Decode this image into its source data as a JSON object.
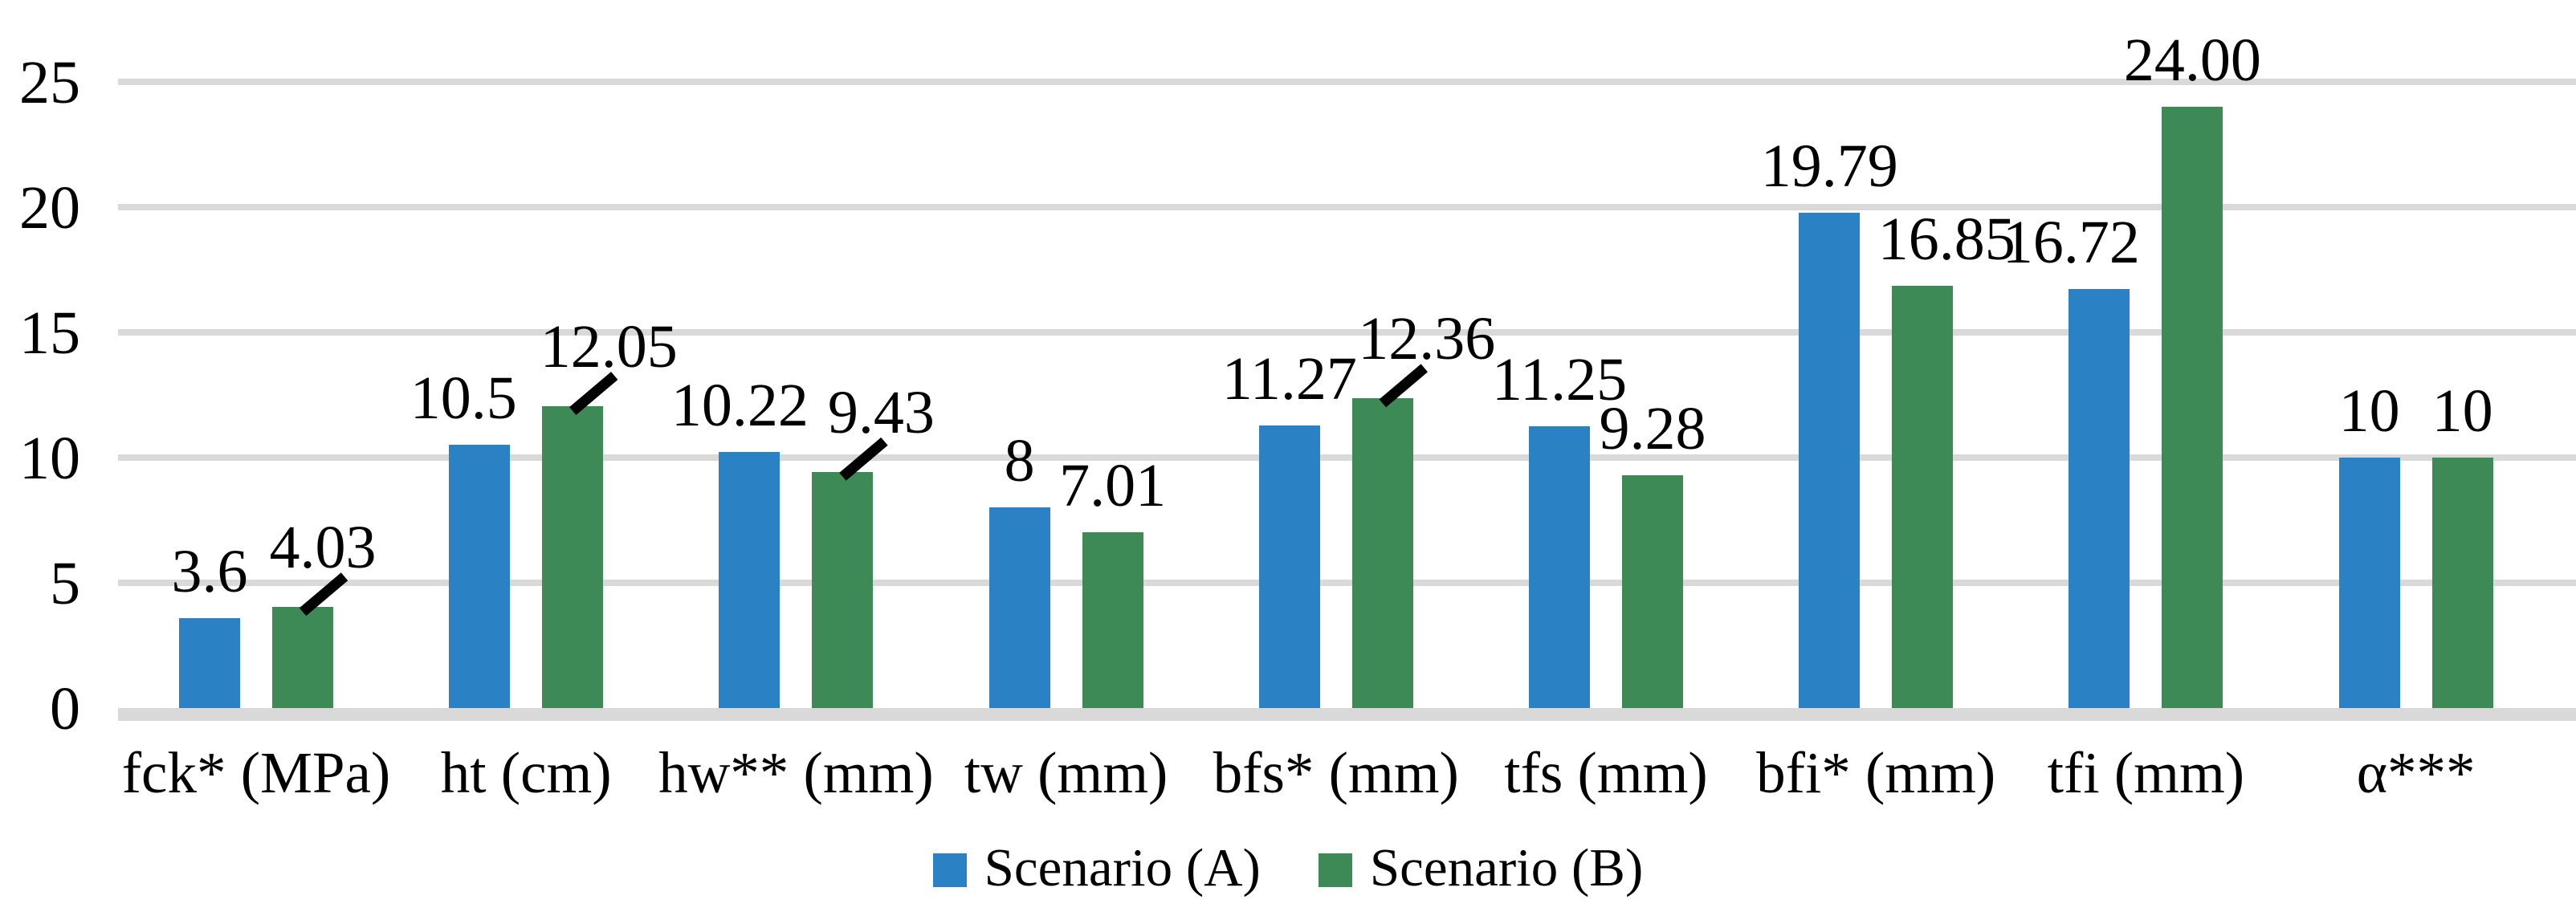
{
  "chart_data": {
    "type": "bar",
    "title": "",
    "xlabel": "",
    "ylabel": "",
    "categories": [
      "fck* (MPa)",
      "ht (cm)",
      "hw** (mm)",
      "tw (mm)",
      "bfs* (mm)",
      "tfs (mm)",
      "bfi* (mm)",
      "tfi (mm)",
      "α***"
    ],
    "series": [
      {
        "name": "Scenario (A)",
        "color": "#2A81C4",
        "values": [
          3.6,
          10.5,
          10.22,
          8,
          11.27,
          11.25,
          19.79,
          16.72,
          10
        ],
        "labels": [
          "3.6",
          "10.5",
          "10.22",
          "8",
          "11.27",
          "11.25",
          "19.79",
          "16.72",
          "10"
        ],
        "label_dx": [
          0,
          -20,
          -12,
          0,
          0,
          0,
          0,
          -35,
          0
        ],
        "callout": [
          false,
          false,
          false,
          false,
          false,
          false,
          false,
          false,
          false
        ]
      },
      {
        "name": "Scenario (B)",
        "color": "#3E8A56",
        "values": [
          4.03,
          12.05,
          9.43,
          7.01,
          12.36,
          9.28,
          16.85,
          24,
          10
        ],
        "labels": [
          "4.03",
          "12.05",
          "9.43",
          "7.01",
          "12.36",
          "9.28",
          "16.85",
          "24.00",
          "10"
        ],
        "label_dx": [
          25,
          45,
          48,
          0,
          55,
          0,
          30,
          0,
          0
        ],
        "callout": [
          true,
          true,
          true,
          false,
          true,
          false,
          false,
          false,
          false
        ]
      }
    ],
    "ylim": [
      0,
      25
    ],
    "yticks": [
      0,
      5,
      10,
      15,
      20,
      25
    ],
    "ytick_labels": [
      "0",
      "5",
      "10",
      "15",
      "20",
      "25"
    ],
    "grid": "horizontal",
    "gridline_color": "#D9D9D9",
    "legend_position": "bottom",
    "data_label_color": "#000000",
    "callout_line_color": "#000000",
    "background": "#FFFFFF"
  }
}
